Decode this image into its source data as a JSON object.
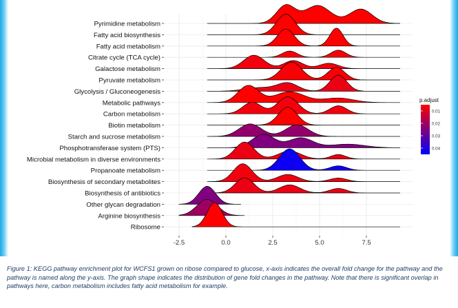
{
  "chart_data": {
    "type": "ridgeline",
    "xlim": [
      -3.5,
      9.5
    ],
    "x_ticks": [
      "-2.5",
      "0.0",
      "2.5",
      "5.0",
      "7.5"
    ],
    "x_tick_values": [
      -2.5,
      0.0,
      2.5,
      5.0,
      7.5
    ],
    "xlabel": "",
    "ylabel": "",
    "grid": true,
    "legend_position": "right",
    "legend": {
      "title": "p.adjust",
      "ticks": [
        "0.01",
        "0.02",
        "0.03",
        "0.04"
      ],
      "tick_values": [
        0.01,
        0.02,
        0.03,
        0.04
      ],
      "range": [
        0.005,
        0.045
      ],
      "color_low": "#ff0000",
      "color_high": "#0000ff"
    },
    "pathways": [
      {
        "name": "Pyrimidine metabolism",
        "p_adjust": 0.005,
        "x_range": [
          -1.0,
          9.3
        ],
        "peaks": [
          [
            3.2,
            1.0,
            0.5
          ],
          [
            4.9,
            1.0,
            0.7
          ],
          [
            7.2,
            0.8,
            0.6
          ]
        ]
      },
      {
        "name": "Fatty acid biosynthesis",
        "p_adjust": 0.005,
        "x_range": [
          -1.0,
          9.3
        ],
        "peaks": [
          [
            3.2,
            1.15,
            0.5
          ]
        ]
      },
      {
        "name": "Fatty acid metabolism",
        "p_adjust": 0.005,
        "x_range": [
          -1.0,
          9.3
        ],
        "peaks": [
          [
            3.2,
            0.95,
            0.45
          ],
          [
            5.9,
            1.0,
            0.35
          ]
        ]
      },
      {
        "name": "Citrate cycle (TCA cycle)",
        "p_adjust": 0.006,
        "x_range": [
          -1.0,
          9.3
        ],
        "peaks": [
          [
            3.4,
            0.35,
            0.4
          ],
          [
            6.0,
            0.4,
            0.4
          ]
        ]
      },
      {
        "name": "Galactose metabolism",
        "p_adjust": 0.007,
        "x_range": [
          -1.0,
          9.3
        ],
        "peaks": [
          [
            1.5,
            0.75,
            0.55
          ],
          [
            3.6,
            0.45,
            0.5
          ],
          [
            5.5,
            0.3,
            0.5
          ]
        ]
      },
      {
        "name": "Pyruvate metabolism",
        "p_adjust": 0.006,
        "x_range": [
          -1.0,
          9.3
        ],
        "peaks": [
          [
            3.5,
            1.0,
            0.55
          ],
          [
            5.9,
            0.7,
            0.45
          ]
        ]
      },
      {
        "name": "Glycolysis / Gluconeogenesis",
        "p_adjust": 0.008,
        "x_range": [
          -1.0,
          9.3
        ],
        "peaks": [
          [
            3.3,
            0.45,
            0.55
          ],
          [
            6.0,
            0.9,
            0.45
          ],
          [
            1.8,
            0.2,
            0.8
          ]
        ]
      },
      {
        "name": "Metabolic pathways",
        "p_adjust": 0.005,
        "x_range": [
          -1.0,
          9.3
        ],
        "peaks": [
          [
            1.2,
            0.95,
            0.55
          ],
          [
            3.4,
            0.6,
            0.8
          ],
          [
            6.0,
            0.25,
            0.8
          ]
        ]
      },
      {
        "name": "Carbon metabolism",
        "p_adjust": 0.007,
        "x_range": [
          -1.0,
          9.3
        ],
        "peaks": [
          [
            1.4,
            0.65,
            0.5
          ],
          [
            3.3,
            0.95,
            0.55
          ],
          [
            6.0,
            0.45,
            0.45
          ]
        ]
      },
      {
        "name": "Biotin metabolism",
        "p_adjust": 0.005,
        "x_range": [
          -1.0,
          9.3
        ],
        "peaks": [
          [
            3.3,
            1.0,
            0.5
          ]
        ]
      },
      {
        "name": "Starch and sucrose metabolism",
        "p_adjust": 0.022,
        "x_range": [
          -1.0,
          9.3
        ],
        "peaks": [
          [
            1.3,
            0.7,
            0.6
          ],
          [
            3.8,
            0.65,
            0.6
          ]
        ]
      },
      {
        "name": "Phosphotransferase system (PTS)",
        "p_adjust": 0.025,
        "x_range": [
          -1.0,
          9.3
        ],
        "peaks": [
          [
            2.0,
            0.75,
            0.6
          ],
          [
            4.0,
            0.55,
            0.65
          ],
          [
            6.5,
            0.2,
            0.9
          ]
        ]
      },
      {
        "name": "Microbial metabolism in diverse environments",
        "p_adjust": 0.008,
        "x_range": [
          -1.0,
          9.3
        ],
        "peaks": [
          [
            1.0,
            0.95,
            0.5
          ],
          [
            3.4,
            0.45,
            0.6
          ],
          [
            6.0,
            0.25,
            0.4
          ]
        ]
      },
      {
        "name": "Propanoate metabolism",
        "p_adjust": 0.043,
        "x_range": [
          -1.0,
          9.3
        ],
        "peaks": [
          [
            3.4,
            1.2,
            0.55
          ],
          [
            6.0,
            0.25,
            0.45
          ]
        ]
      },
      {
        "name": "Biosynthesis of secondary metabolites",
        "p_adjust": 0.007,
        "x_range": [
          -1.0,
          9.3
        ],
        "peaks": [
          [
            0.9,
            1.0,
            0.5
          ],
          [
            3.3,
            0.4,
            0.55
          ],
          [
            6.0,
            0.2,
            0.45
          ]
        ]
      },
      {
        "name": "Biosynthesis of antibiotics",
        "p_adjust": 0.008,
        "x_range": [
          -1.0,
          9.3
        ],
        "peaks": [
          [
            1.0,
            0.85,
            0.5
          ],
          [
            3.4,
            0.45,
            0.55
          ],
          [
            6.0,
            0.25,
            0.45
          ]
        ]
      },
      {
        "name": "Other glycan degradation",
        "p_adjust": 0.025,
        "x_range": [
          -2.5,
          0.8
        ],
        "peaks": [
          [
            -1.0,
            1.0,
            0.45
          ]
        ]
      },
      {
        "name": "Arginine biosynthesis",
        "p_adjust": 0.02,
        "x_range": [
          -2.5,
          1.0
        ],
        "peaks": [
          [
            -1.0,
            0.9,
            0.55
          ]
        ]
      },
      {
        "name": "Ribosome",
        "p_adjust": 0.005,
        "x_range": [
          -1.8,
          9.3
        ],
        "peaks": [
          [
            -0.6,
            1.35,
            0.4
          ]
        ]
      }
    ]
  },
  "caption": "Figure 1: KEGG pathway enrichment plot for WCFS1 grown on ribose compared to glucose, x-axis indicates the overall fold change for the pathway and the pathway is named along the y-axis. The graph shape indicates the distribution of gene fold changes in the pathway. Note that there is significant overlap in pathways here, carbon metabolism includes fatty acid metabolism for example."
}
